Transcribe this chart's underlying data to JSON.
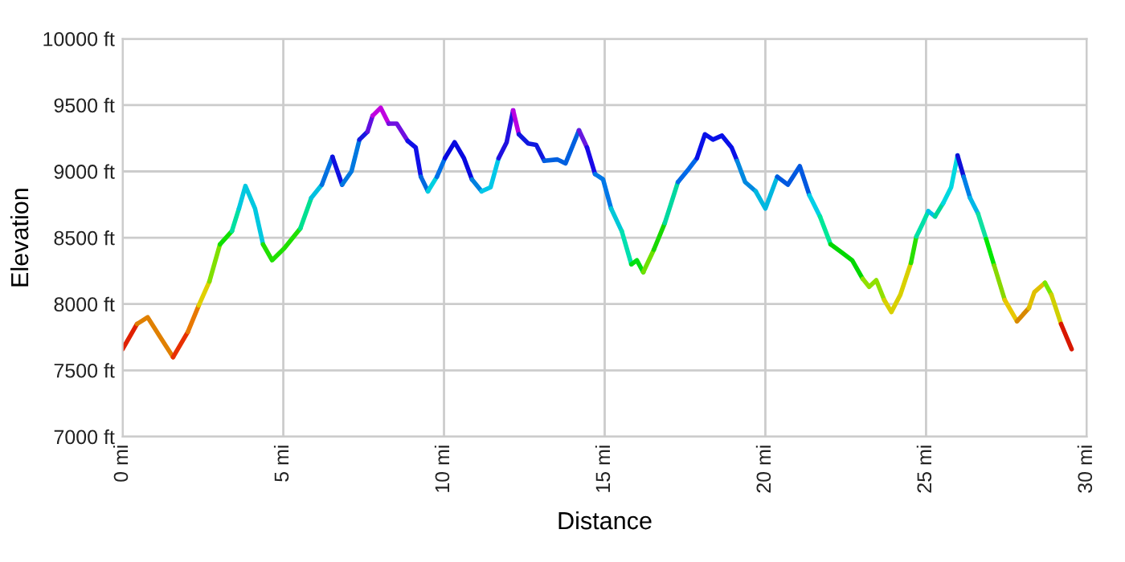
{
  "chart_data": {
    "type": "line",
    "xlabel": "Distance",
    "ylabel": "Elevation",
    "xlim": [
      0,
      30
    ],
    "ylim": [
      7000,
      10000
    ],
    "xticks": [
      {
        "value": 0,
        "label": "0 mi"
      },
      {
        "value": 5,
        "label": "5 mi"
      },
      {
        "value": 10,
        "label": "10 mi"
      },
      {
        "value": 15,
        "label": "15 mi"
      },
      {
        "value": 20,
        "label": "20 mi"
      },
      {
        "value": 25,
        "label": "25 mi"
      },
      {
        "value": 30,
        "label": "30 mi"
      }
    ],
    "yticks": [
      {
        "value": 7000,
        "label": "7000 ft"
      },
      {
        "value": 7500,
        "label": "7500 ft"
      },
      {
        "value": 8000,
        "label": "8000 ft"
      },
      {
        "value": 8500,
        "label": "8500 ft"
      },
      {
        "value": 9000,
        "label": "9000 ft"
      },
      {
        "value": 9500,
        "label": "9500 ft"
      },
      {
        "value": 10000,
        "label": "10000 ft"
      }
    ],
    "grid": true,
    "legend": false,
    "marker": "none",
    "line_style": "solid",
    "series": [
      {
        "color": "#e02000",
        "x": [
          0,
          0.45
        ],
        "values": [
          7660,
          7850
        ]
      },
      {
        "color": "#e08000",
        "x": [
          0.45,
          0.78,
          1.2,
          1.57
        ],
        "values": [
          7850,
          7900,
          7740,
          7600
        ]
      },
      {
        "color": "#e83000",
        "x": [
          1.57,
          2.03
        ],
        "values": [
          7600,
          7790
        ]
      },
      {
        "color": "#e87800",
        "x": [
          2.03,
          2.37
        ],
        "values": [
          7790,
          7990
        ]
      },
      {
        "color": "#e0d000",
        "x": [
          2.37,
          2.7
        ],
        "values": [
          7990,
          8170
        ]
      },
      {
        "color": "#80e000",
        "x": [
          2.7,
          3.03
        ],
        "values": [
          8170,
          8450
        ]
      },
      {
        "color": "#10e000",
        "x": [
          3.03,
          3.4
        ],
        "values": [
          8450,
          8550
        ]
      },
      {
        "color": "#00e0a0",
        "x": [
          3.4,
          3.62
        ],
        "values": [
          8550,
          8720
        ]
      },
      {
        "color": "#00c8e0",
        "x": [
          3.62,
          3.82,
          4.12,
          4.37
        ],
        "values": [
          8720,
          8890,
          8720,
          8450
        ]
      },
      {
        "color": "#20e000",
        "x": [
          4.37,
          4.65,
          5.03,
          5.53
        ],
        "values": [
          8450,
          8330,
          8420,
          8570
        ]
      },
      {
        "color": "#00e090",
        "x": [
          5.53,
          5.87
        ],
        "values": [
          8570,
          8800
        ]
      },
      {
        "color": "#00c0e0",
        "x": [
          5.87,
          6.2
        ],
        "values": [
          8800,
          8900
        ]
      },
      {
        "color": "#0070e0",
        "x": [
          6.2,
          6.53
        ],
        "values": [
          8900,
          9110
        ]
      },
      {
        "color": "#1010e0",
        "x": [
          6.53,
          6.83
        ],
        "values": [
          9110,
          8900
        ]
      },
      {
        "color": "#0078e0",
        "x": [
          6.83,
          7.12,
          7.37
        ],
        "values": [
          8900,
          9000,
          9240
        ]
      },
      {
        "color": "#1818e0",
        "x": [
          7.37,
          7.62
        ],
        "values": [
          9240,
          9300
        ]
      },
      {
        "color": "#6010e0",
        "x": [
          7.62,
          7.78
        ],
        "values": [
          9300,
          9420
        ]
      },
      {
        "color": "#c000e0",
        "x": [
          7.78,
          8.03,
          8.28
        ],
        "values": [
          9420,
          9480,
          9360
        ]
      },
      {
        "color": "#7010e0",
        "x": [
          8.28,
          8.53,
          8.87
        ],
        "values": [
          9360,
          9360,
          9230
        ]
      },
      {
        "color": "#1010e8",
        "x": [
          8.87,
          9.12,
          9.28
        ],
        "values": [
          9230,
          9180,
          8960
        ]
      },
      {
        "color": "#0068e0",
        "x": [
          9.28,
          9.5
        ],
        "values": [
          8960,
          8850
        ]
      },
      {
        "color": "#00d0e0",
        "x": [
          9.5,
          9.78
        ],
        "values": [
          8850,
          8960
        ]
      },
      {
        "color": "#0070e8",
        "x": [
          9.78,
          10.03
        ],
        "values": [
          8960,
          9100
        ]
      },
      {
        "color": "#0808e0",
        "x": [
          10.03,
          10.33,
          10.62,
          10.87
        ],
        "values": [
          9100,
          9220,
          9100,
          8940
        ]
      },
      {
        "color": "#0080e0",
        "x": [
          10.87,
          11.17
        ],
        "values": [
          8940,
          8850
        ]
      },
      {
        "color": "#00c8e8",
        "x": [
          11.17,
          11.45,
          11.7
        ],
        "values": [
          8850,
          8880,
          9100
        ]
      },
      {
        "color": "#2010e0",
        "x": [
          11.7,
          11.95,
          12.15
        ],
        "values": [
          9100,
          9220,
          9460
        ]
      },
      {
        "color": "#b800e0",
        "x": [
          12.15,
          12.33
        ],
        "values": [
          9460,
          9280
        ]
      },
      {
        "color": "#1018e0",
        "x": [
          12.33,
          12.62,
          12.87,
          13.12
        ],
        "values": [
          9280,
          9210,
          9200,
          9080
        ]
      },
      {
        "color": "#0060e0",
        "x": [
          13.12,
          13.53,
          13.78,
          14.2
        ],
        "values": [
          9080,
          9090,
          9060,
          9310
        ]
      },
      {
        "color": "#6818e0",
        "x": [
          14.2,
          14.45
        ],
        "values": [
          9310,
          9180
        ]
      },
      {
        "color": "#1808e8",
        "x": [
          14.45,
          14.7
        ],
        "values": [
          9180,
          8980
        ]
      },
      {
        "color": "#0078e8",
        "x": [
          14.7,
          14.95,
          15.2
        ],
        "values": [
          8980,
          8940,
          8720
        ]
      },
      {
        "color": "#00c8d8",
        "x": [
          15.2,
          15.53
        ],
        "values": [
          8720,
          8550
        ]
      },
      {
        "color": "#00e0b0",
        "x": [
          15.53,
          15.83
        ],
        "values": [
          8550,
          8300
        ]
      },
      {
        "color": "#00e010",
        "x": [
          15.83,
          16.0,
          16.2
        ],
        "values": [
          8300,
          8330,
          8240
        ]
      },
      {
        "color": "#70e000",
        "x": [
          16.2,
          16.53
        ],
        "values": [
          8240,
          8410
        ]
      },
      {
        "color": "#18d800",
        "x": [
          16.53,
          16.87
        ],
        "values": [
          8410,
          8610
        ]
      },
      {
        "color": "#00d8a0",
        "x": [
          16.87,
          17.28
        ],
        "values": [
          8610,
          8920
        ]
      },
      {
        "color": "#0068e8",
        "x": [
          17.28,
          17.62,
          17.87
        ],
        "values": [
          8920,
          9020,
          9100
        ]
      },
      {
        "color": "#0810e8",
        "x": [
          17.87,
          18.12,
          18.37,
          18.65,
          18.95,
          19.12
        ],
        "values": [
          9100,
          9280,
          9240,
          9270,
          9180,
          9080
        ]
      },
      {
        "color": "#0088e0",
        "x": [
          19.12,
          19.37,
          19.7
        ],
        "values": [
          9080,
          8920,
          8850
        ]
      },
      {
        "color": "#00b8e0",
        "x": [
          19.7,
          20.0,
          20.37
        ],
        "values": [
          8850,
          8720,
          8960
        ]
      },
      {
        "color": "#0058e0",
        "x": [
          20.37,
          20.7,
          21.07,
          21.37
        ],
        "values": [
          8960,
          8900,
          9040,
          8820
        ]
      },
      {
        "color": "#00d0e8",
        "x": [
          21.37,
          21.7
        ],
        "values": [
          8820,
          8660
        ]
      },
      {
        "color": "#00e898",
        "x": [
          21.7,
          22.03
        ],
        "values": [
          8660,
          8450
        ]
      },
      {
        "color": "#00d800",
        "x": [
          22.03,
          22.37,
          22.7,
          23.03
        ],
        "values": [
          8450,
          8390,
          8330,
          8190
        ]
      },
      {
        "color": "#90e000",
        "x": [
          23.03,
          23.23,
          23.45,
          23.7
        ],
        "values": [
          8190,
          8130,
          8180,
          8030
        ]
      },
      {
        "color": "#d8d000",
        "x": [
          23.7,
          23.92,
          24.2,
          24.53
        ],
        "values": [
          8030,
          7940,
          8070,
          8310
        ]
      },
      {
        "color": "#28e000",
        "x": [
          24.53,
          24.7
        ],
        "values": [
          8310,
          8510
        ]
      },
      {
        "color": "#00e0a8",
        "x": [
          24.7,
          24.9,
          25.07
        ],
        "values": [
          8510,
          8610,
          8700
        ]
      },
      {
        "color": "#00c0e8",
        "x": [
          25.07,
          25.28
        ],
        "values": [
          8700,
          8660
        ]
      },
      {
        "color": "#00d898",
        "x": [
          25.28,
          25.53
        ],
        "values": [
          8660,
          8760
        ]
      },
      {
        "color": "#00d8e0",
        "x": [
          25.53,
          25.78,
          25.98
        ],
        "values": [
          8760,
          8880,
          9120
        ]
      },
      {
        "color": "#1010d8",
        "x": [
          25.98,
          26.17
        ],
        "values": [
          9120,
          8960
        ]
      },
      {
        "color": "#0080e8",
        "x": [
          26.17,
          26.37
        ],
        "values": [
          8960,
          8800
        ]
      },
      {
        "color": "#00b8e8",
        "x": [
          26.37,
          26.62
        ],
        "values": [
          8800,
          8680
        ]
      },
      {
        "color": "#10e0a0",
        "x": [
          26.62,
          26.87
        ],
        "values": [
          8680,
          8490
        ]
      },
      {
        "color": "#00e800",
        "x": [
          26.87,
          27.12
        ],
        "values": [
          8490,
          8290
        ]
      },
      {
        "color": "#88d800",
        "x": [
          27.12,
          27.45
        ],
        "values": [
          8290,
          8030
        ]
      },
      {
        "color": "#e8c800",
        "x": [
          27.45,
          27.83
        ],
        "values": [
          8030,
          7870
        ]
      },
      {
        "color": "#d88800",
        "x": [
          27.83,
          28.2
        ],
        "values": [
          7870,
          7970
        ]
      },
      {
        "color": "#e0c000",
        "x": [
          28.2,
          28.37,
          28.7
        ],
        "values": [
          7970,
          8090,
          8160
        ]
      },
      {
        "color": "#78e800",
        "x": [
          28.7,
          28.9
        ],
        "values": [
          8160,
          8070
        ]
      },
      {
        "color": "#d0d000",
        "x": [
          28.9,
          29.2
        ],
        "values": [
          8070,
          7850
        ]
      },
      {
        "color": "#d81800",
        "x": [
          29.2,
          29.53
        ],
        "values": [
          7850,
          7660
        ]
      }
    ]
  }
}
